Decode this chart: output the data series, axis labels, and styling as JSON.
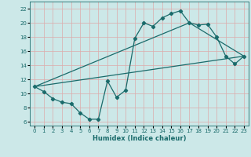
{
  "xlabel": "Humidex (Indice chaleur)",
  "xlim": [
    -0.5,
    23.5
  ],
  "ylim": [
    5.5,
    23.0
  ],
  "xticks": [
    0,
    1,
    2,
    3,
    4,
    5,
    6,
    7,
    8,
    9,
    10,
    11,
    12,
    13,
    14,
    15,
    16,
    17,
    18,
    19,
    20,
    21,
    22,
    23
  ],
  "yticks": [
    6,
    8,
    10,
    12,
    14,
    16,
    18,
    20,
    22
  ],
  "bg_color": "#cce8e8",
  "grid_color": "#aacccc",
  "line_color": "#1a6b6b",
  "line1_x": [
    0,
    1,
    2,
    3,
    4,
    5,
    6,
    7,
    8,
    9,
    10,
    11,
    12,
    13,
    14,
    15,
    16,
    17,
    18,
    19,
    20,
    21,
    22,
    23
  ],
  "line1_y": [
    11.0,
    10.3,
    9.3,
    8.8,
    8.6,
    7.3,
    6.4,
    6.4,
    11.8,
    9.5,
    10.5,
    17.8,
    20.0,
    19.5,
    20.7,
    21.3,
    21.7,
    20.0,
    19.7,
    19.8,
    18.0,
    15.3,
    14.2,
    15.3
  ],
  "line2_x": [
    0,
    23
  ],
  "line2_y": [
    11.0,
    15.3
  ],
  "line3_x": [
    0,
    17,
    23
  ],
  "line3_y": [
    11.0,
    20.0,
    15.3
  ]
}
